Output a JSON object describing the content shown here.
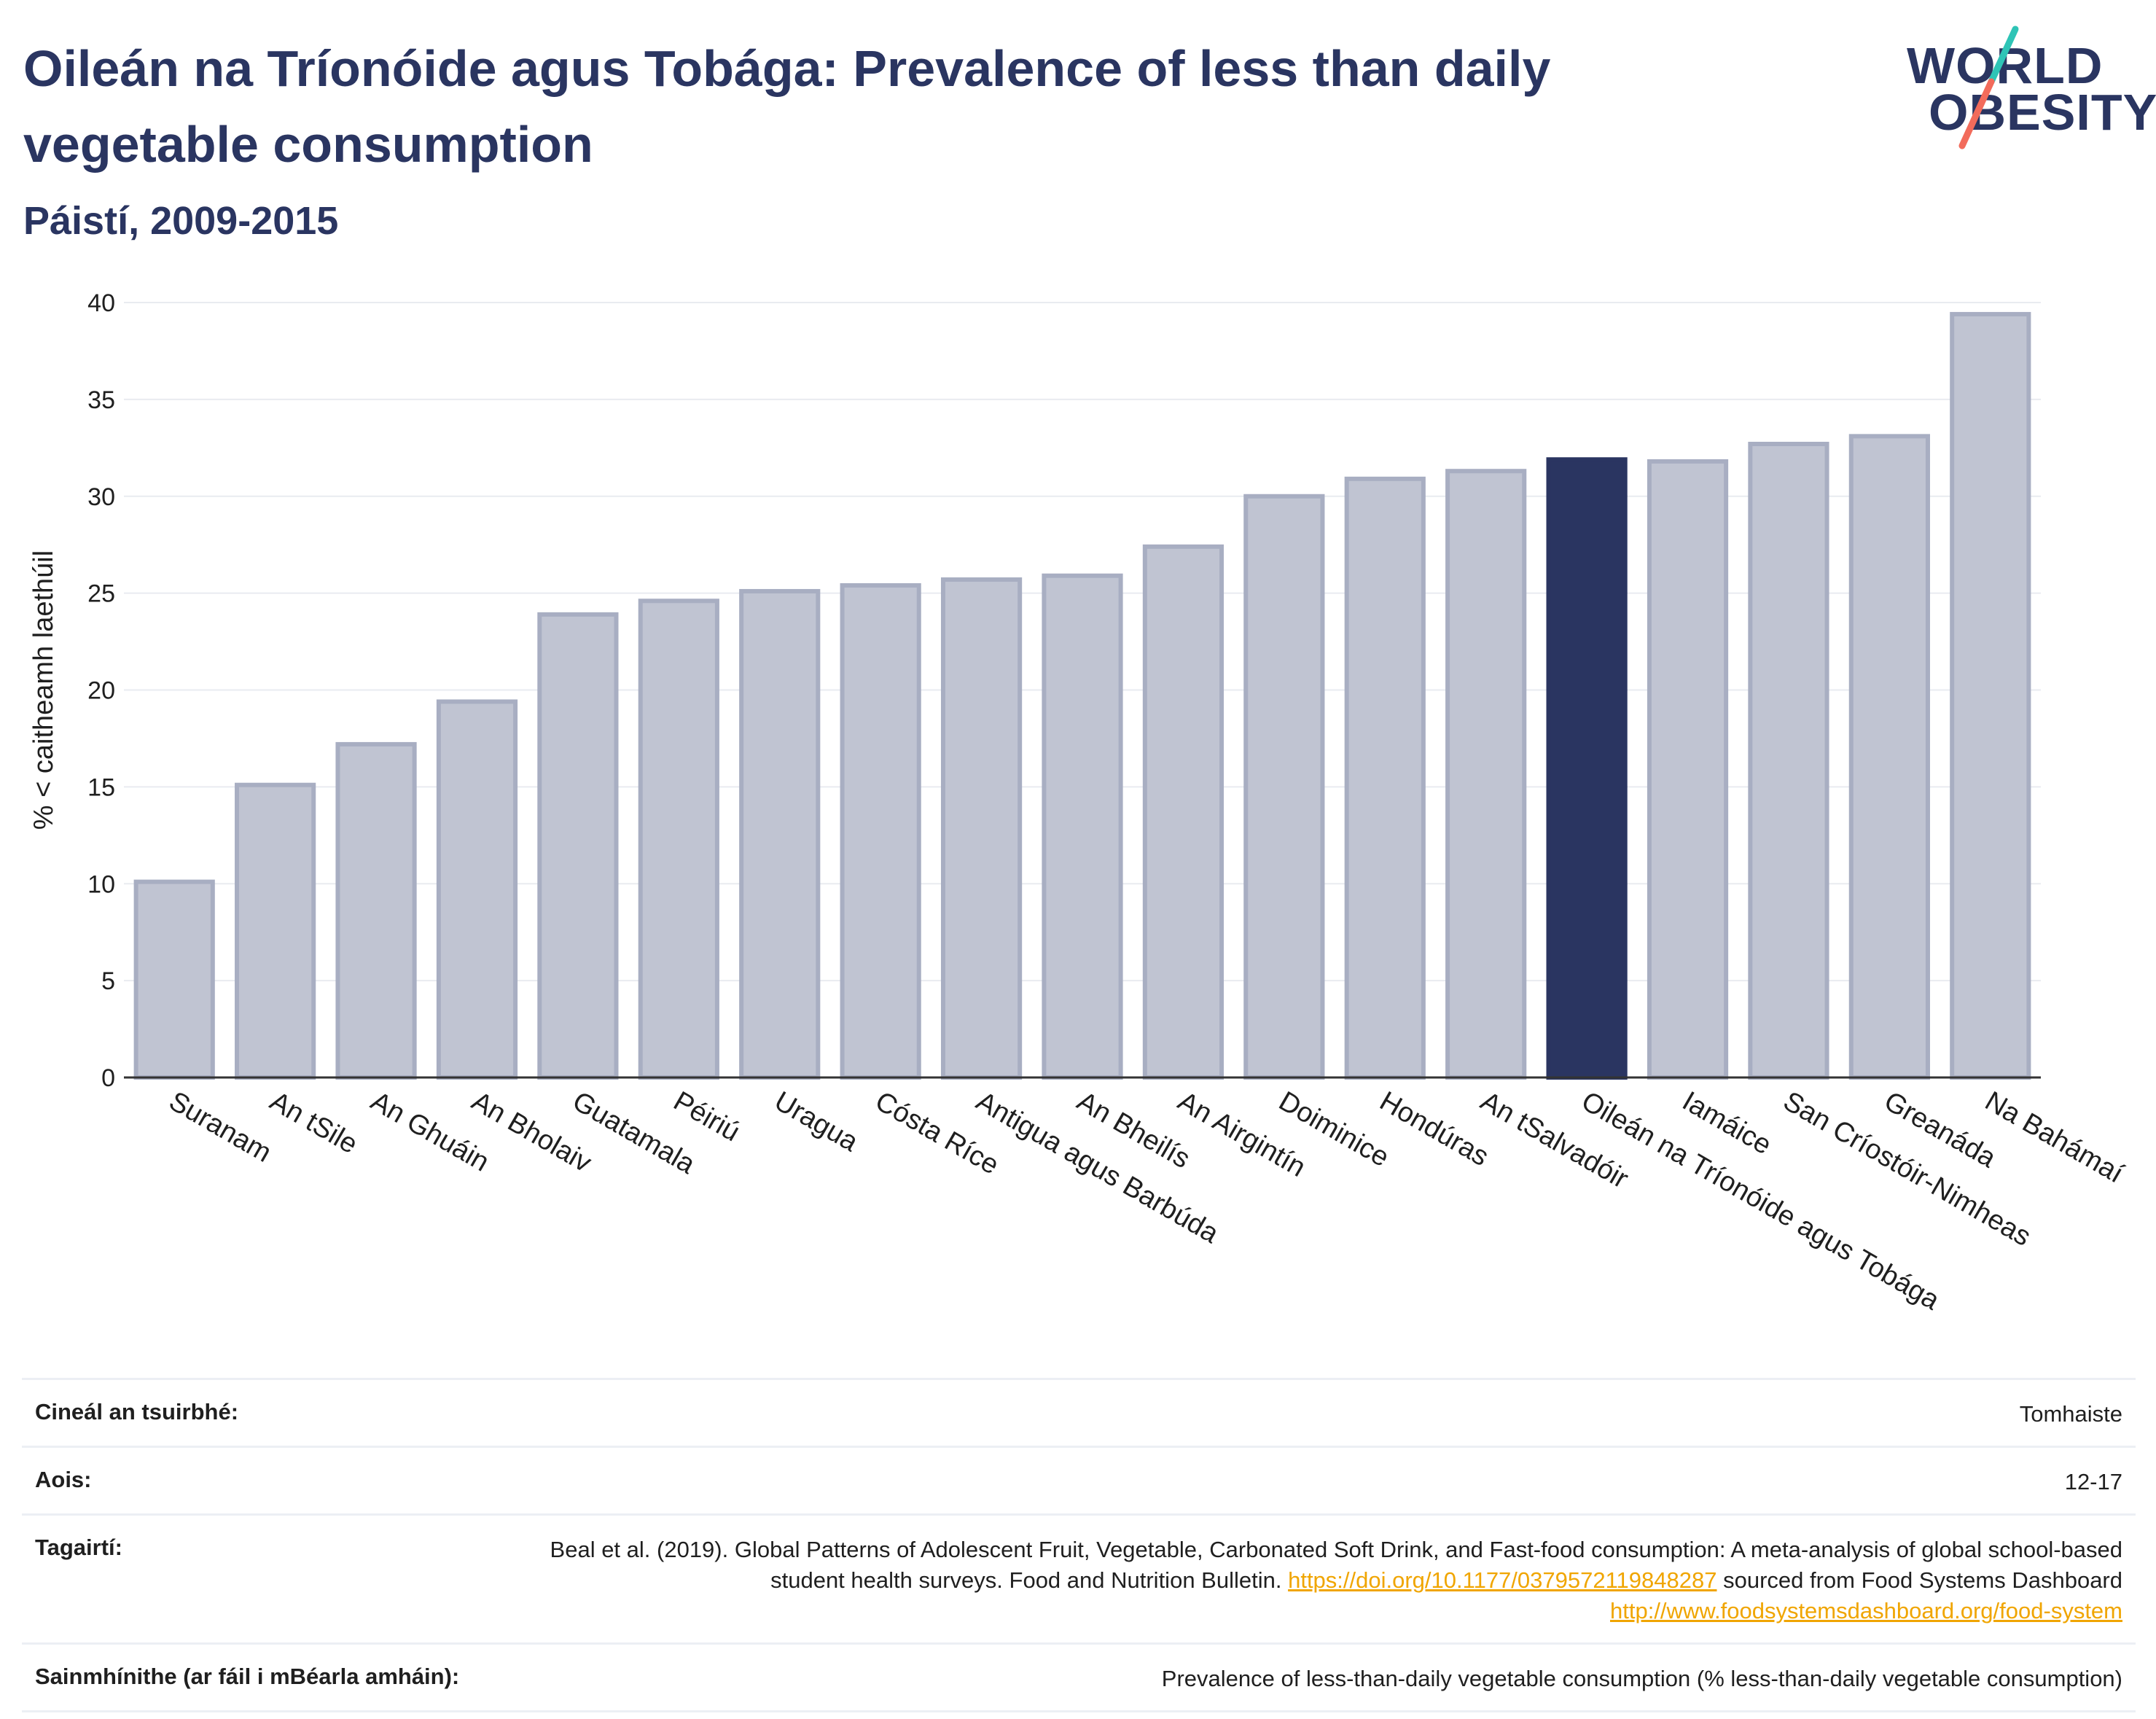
{
  "header": {
    "title": "Oileán na Tríonóide agus Tobága: Prevalence of less than daily vegetable consumption",
    "subtitle": "Páistí, 2009-2015"
  },
  "logo": {
    "line1": "WORLD",
    "line2": "OBESITY"
  },
  "chart_data": {
    "type": "bar",
    "ylabel": "% < caitheamh laethúil",
    "ylim": [
      0,
      40
    ],
    "yticks": [
      0,
      5,
      10,
      15,
      20,
      25,
      30,
      35,
      40
    ],
    "grid": true,
    "categories": [
      "Suranam",
      "An tSile",
      "An Ghuáin",
      "An Bholaiv",
      "Guatamala",
      "Péiriú",
      "Uragua",
      "Cósta Ríce",
      "Antigua agus Barbúda",
      "An Bheilís",
      "An Airgintín",
      "Doiminice",
      "Hondúras",
      "An tSalvadóir",
      "Oileán na Tríonóide agus Tobága",
      "Iamáice",
      "San Críostóir-Nimheas",
      "Greanáda",
      "Na Bahámaí"
    ],
    "values": [
      10.1,
      15.1,
      17.2,
      19.4,
      23.9,
      24.6,
      25.1,
      25.4,
      25.7,
      25.9,
      27.4,
      30.0,
      30.9,
      31.3,
      31.9,
      31.8,
      32.7,
      33.1,
      39.4
    ],
    "highlight": "Oileán na Tríonóide agus Tobága",
    "colors": {
      "bar": "#c0c4d2",
      "bar_border": "#a8aec2",
      "highlight": "#2a3561"
    }
  },
  "meta": {
    "survey_label": "Cineál an tsuirbhé:",
    "survey_value": "Tomhaiste",
    "age_label": "Aois:",
    "age_value": "12-17",
    "refs_label": "Tagairtí:",
    "refs_text1": "Beal et al. (2019). Global Patterns of Adolescent Fruit, Vegetable, Carbonated Soft Drink, and Fast-food consumption: A meta-analysis of global school-based student health surveys. Food and Nutrition Bulletin.",
    "refs_link1": "https://doi.org/10.1177/0379572119848287",
    "refs_text2": "sourced from Food Systems Dashboard",
    "refs_link2": "http://www.foodsystemsdashboard.org/food-system",
    "def_label": "Sainmhínithe (ar fáil i mBéarla amháin):",
    "def_value": "Prevalence of less-than-daily vegetable consumption (% less-than-daily vegetable consumption)"
  }
}
